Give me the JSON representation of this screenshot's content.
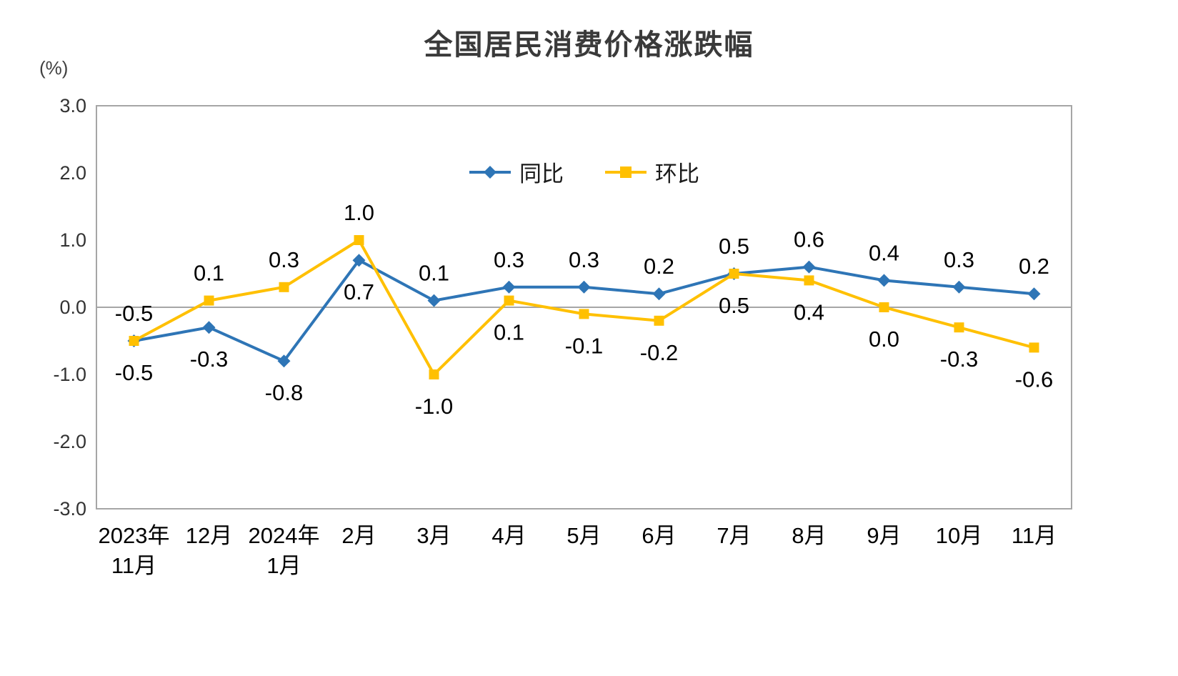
{
  "chart_data": {
    "type": "line",
    "title": "全国居民消费价格涨跌幅",
    "ylabel": "(%)",
    "ylim": [
      -3.0,
      3.0
    ],
    "ytick_labels": [
      "3.0",
      "2.0",
      "1.0",
      "0.0",
      "-1.0",
      "-2.0",
      "-3.0"
    ],
    "ytick_values": [
      3.0,
      2.0,
      1.0,
      0.0,
      -1.0,
      -2.0,
      -3.0
    ],
    "grid": "zero-line-only",
    "legend_position": "top-center-inside",
    "frame_color": "#a6a6a6",
    "zero_line_color": "#a6a6a6",
    "data_label_color": "#000000",
    "categories": [
      [
        "2023年",
        "11月"
      ],
      [
        "12月"
      ],
      [
        "2024年",
        "1月"
      ],
      [
        "2月"
      ],
      [
        "3月"
      ],
      [
        "4月"
      ],
      [
        "5月"
      ],
      [
        "6月"
      ],
      [
        "7月"
      ],
      [
        "8月"
      ],
      [
        "9月"
      ],
      [
        "10月"
      ],
      [
        "11月"
      ]
    ],
    "series": [
      {
        "name": "同比",
        "color": "#2e75b6",
        "marker": "diamond",
        "values": [
          -0.5,
          -0.3,
          -0.8,
          0.7,
          0.1,
          0.3,
          0.3,
          0.2,
          0.5,
          0.6,
          0.4,
          0.3,
          0.2
        ]
      },
      {
        "name": "环比",
        "color": "#ffc000",
        "marker": "square",
        "values": [
          -0.5,
          0.1,
          0.3,
          1.0,
          -1.0,
          0.1,
          -0.1,
          -0.2,
          0.5,
          0.4,
          0.0,
          -0.3,
          -0.6
        ]
      }
    ]
  }
}
